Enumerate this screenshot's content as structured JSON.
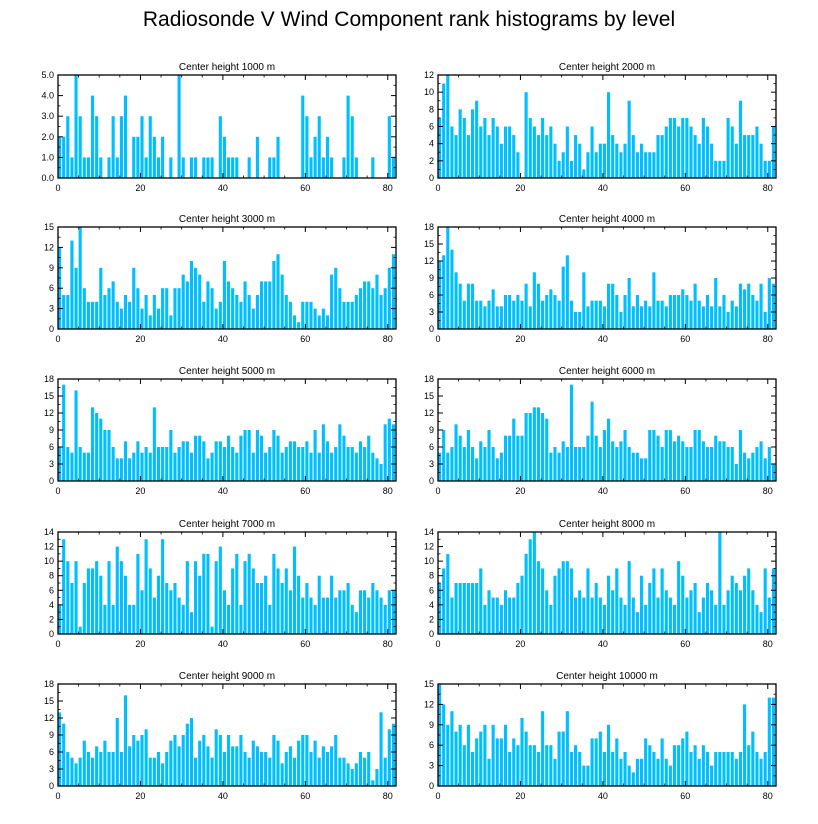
{
  "title": "Radiosonde V Wind Component rank histograms by level",
  "colors": {
    "bar": "#00bfff",
    "axis": "#000000",
    "background": "#ffffff"
  },
  "chart_data": [
    {
      "type": "bar",
      "title": "Center height 1000 m",
      "xticks": [
        0,
        20,
        40,
        60,
        80
      ],
      "yticks": [
        0,
        1,
        2,
        3,
        4,
        5
      ],
      "ytick_labels": [
        "0.0",
        "1.0",
        "2.0",
        "3.0",
        "4.0",
        "5.0"
      ],
      "ylim": [
        0,
        5
      ],
      "xlim": [
        0,
        82
      ],
      "values": [
        2,
        2,
        3,
        1,
        5,
        3,
        1,
        1,
        4,
        3,
        1,
        0,
        1,
        3,
        1,
        3,
        4,
        0,
        2,
        2,
        3,
        1,
        3,
        2,
        1,
        2,
        0,
        1,
        0,
        5,
        1,
        0,
        1,
        1,
        0,
        1,
        1,
        1,
        0,
        3,
        2,
        1,
        1,
        1,
        0,
        0,
        1,
        0,
        2,
        0,
        0,
        1,
        1,
        2,
        0,
        0,
        0,
        0,
        0,
        4,
        3,
        1,
        2,
        3,
        1,
        2,
        1,
        0,
        0,
        1,
        4,
        3,
        1,
        0,
        0,
        0,
        1,
        0,
        0,
        0,
        3,
        1
      ]
    },
    {
      "type": "bar",
      "title": "Center height 2000 m",
      "xticks": [
        0,
        20,
        40,
        60,
        80
      ],
      "yticks": [
        0,
        2,
        4,
        6,
        8,
        10,
        12
      ],
      "ytick_labels": [
        "0",
        "2",
        "4",
        "6",
        "8",
        "10",
        "12"
      ],
      "ylim": [
        0,
        12
      ],
      "xlim": [
        0,
        82
      ],
      "values": [
        7,
        11,
        12,
        6,
        5,
        8,
        7,
        5,
        8,
        9,
        6,
        7,
        5,
        7,
        6,
        4,
        6,
        6,
        5,
        3,
        0,
        10,
        7,
        6,
        5,
        7,
        5,
        6,
        4,
        2,
        3,
        6,
        2,
        5,
        4,
        1,
        3,
        6,
        3,
        4,
        4,
        10,
        5,
        4,
        3,
        4,
        9,
        5,
        3,
        4,
        3,
        3,
        3,
        5,
        5,
        6,
        7,
        7,
        6,
        7,
        7,
        6,
        5,
        4,
        7,
        6,
        4,
        2,
        2,
        2,
        7,
        6,
        4,
        9,
        5,
        5,
        5,
        6,
        4,
        2,
        2,
        6
      ]
    },
    {
      "type": "bar",
      "title": "Center height 3000 m",
      "xticks": [
        0,
        20,
        40,
        60,
        80
      ],
      "yticks": [
        0,
        3,
        6,
        9,
        12,
        15
      ],
      "ytick_labels": [
        "0",
        "3",
        "6",
        "9",
        "12",
        "15"
      ],
      "ylim": [
        0,
        15
      ],
      "xlim": [
        0,
        82
      ],
      "values": [
        12,
        5,
        5,
        13,
        9,
        15,
        6,
        4,
        4,
        4,
        9,
        5,
        6,
        7,
        4,
        3,
        5,
        4,
        9,
        6,
        3,
        5,
        2,
        5,
        3,
        6,
        6,
        2,
        6,
        6,
        8,
        7,
        10,
        9,
        8,
        4,
        7,
        6,
        3,
        4,
        10,
        7,
        6,
        5,
        4,
        7,
        5,
        3,
        5,
        7,
        7,
        7,
        10,
        11,
        8,
        5,
        4,
        2,
        1,
        4,
        4,
        4,
        3,
        2,
        3,
        2,
        8,
        9,
        6,
        4,
        4,
        4,
        5,
        6,
        7,
        7,
        6,
        8,
        5,
        6,
        9,
        11
      ]
    },
    {
      "type": "bar",
      "title": "Center height 4000 m",
      "xticks": [
        0,
        20,
        40,
        60,
        80
      ],
      "yticks": [
        0,
        3,
        6,
        9,
        12,
        15,
        18
      ],
      "ytick_labels": [
        "0",
        "3",
        "6",
        "9",
        "12",
        "15",
        "18"
      ],
      "ylim": [
        0,
        18
      ],
      "xlim": [
        0,
        82
      ],
      "values": [
        12,
        13,
        18,
        14,
        10,
        8,
        5,
        8,
        8,
        5,
        5,
        4,
        5,
        7,
        4,
        4,
        6,
        6,
        5,
        6,
        5,
        8,
        4,
        10,
        8,
        5,
        6,
        7,
        6,
        5,
        11,
        13,
        5,
        3,
        3,
        10,
        4,
        5,
        5,
        5,
        4,
        8,
        8,
        6,
        3,
        6,
        9,
        4,
        6,
        4,
        5,
        4,
        10,
        5,
        5,
        4,
        6,
        6,
        6,
        7,
        6,
        5,
        8,
        5,
        4,
        6,
        4,
        9,
        4,
        6,
        3,
        5,
        4,
        8,
        7,
        8,
        6,
        5,
        8,
        3,
        9,
        8
      ]
    },
    {
      "type": "bar",
      "title": "Center height 5000 m",
      "xticks": [
        0,
        20,
        40,
        60,
        80
      ],
      "yticks": [
        0,
        3,
        6,
        9,
        12,
        15,
        18
      ],
      "ytick_labels": [
        "0",
        "3",
        "6",
        "9",
        "12",
        "15",
        "18"
      ],
      "ylim": [
        0,
        18
      ],
      "xlim": [
        0,
        82
      ],
      "values": [
        6,
        17,
        6,
        5,
        16,
        6,
        5,
        5,
        13,
        12,
        11,
        9,
        9,
        6,
        4,
        4,
        7,
        4,
        5,
        7,
        5,
        6,
        5,
        13,
        6,
        6,
        6,
        9,
        5,
        6,
        7,
        7,
        5,
        8,
        8,
        7,
        4,
        5,
        7,
        7,
        6,
        8,
        6,
        5,
        8,
        9,
        9,
        5,
        9,
        8,
        5,
        6,
        9,
        8,
        5,
        6,
        7,
        7,
        6,
        6,
        7,
        5,
        9,
        5,
        10,
        7,
        5,
        6,
        10,
        8,
        6,
        6,
        5,
        7,
        6,
        8,
        5,
        4,
        3,
        10,
        11,
        10
      ]
    },
    {
      "type": "bar",
      "title": "Center height 6000 m",
      "xticks": [
        0,
        20,
        40,
        60,
        80
      ],
      "yticks": [
        0,
        3,
        6,
        9,
        12,
        15,
        18
      ],
      "ytick_labels": [
        "0",
        "3",
        "6",
        "9",
        "12",
        "15",
        "18"
      ],
      "ylim": [
        0,
        18
      ],
      "xlim": [
        0,
        82
      ],
      "values": [
        5,
        9,
        5,
        6,
        10,
        8,
        6,
        9,
        6,
        4,
        7,
        6,
        9,
        6,
        4,
        5,
        8,
        8,
        11,
        8,
        8,
        12,
        12,
        13,
        13,
        12,
        11,
        5,
        6,
        5,
        7,
        6,
        17,
        6,
        6,
        6,
        8,
        14,
        8,
        6,
        9,
        11,
        7,
        6,
        7,
        9,
        6,
        5,
        5,
        4,
        4,
        9,
        9,
        8,
        6,
        9,
        9,
        7,
        8,
        7,
        6,
        6,
        9,
        9,
        7,
        6,
        6,
        8,
        7,
        7,
        6,
        6,
        3,
        9,
        5,
        4,
        5,
        6,
        7,
        4,
        6,
        3
      ]
    },
    {
      "type": "bar",
      "title": "Center height 7000 m",
      "xticks": [
        0,
        20,
        40,
        60,
        80
      ],
      "yticks": [
        0,
        2,
        4,
        6,
        8,
        10,
        12,
        14
      ],
      "ytick_labels": [
        "0",
        "2",
        "4",
        "6",
        "8",
        "10",
        "12",
        "14"
      ],
      "ylim": [
        0,
        14
      ],
      "xlim": [
        0,
        82
      ],
      "values": [
        4,
        13,
        10,
        7,
        10,
        1,
        7,
        9,
        9,
        10,
        8,
        4,
        10,
        4,
        12,
        10,
        8,
        4,
        4,
        11,
        6,
        13,
        9,
        5,
        8,
        13,
        7,
        6,
        7,
        5,
        4,
        10,
        3,
        10,
        8,
        11,
        11,
        1,
        10,
        12,
        6,
        4,
        9,
        11,
        4,
        10,
        11,
        9,
        7,
        7,
        8,
        4,
        11,
        9,
        7,
        9,
        6,
        12,
        8,
        5,
        7,
        5,
        4,
        8,
        5,
        5,
        8,
        5,
        6,
        6,
        7,
        4,
        3,
        6,
        6,
        5,
        7,
        6,
        5,
        4,
        6,
        6
      ]
    },
    {
      "type": "bar",
      "title": "Center height 8000 m",
      "xticks": [
        0,
        20,
        40,
        60,
        80
      ],
      "yticks": [
        0,
        2,
        4,
        6,
        8,
        10,
        12,
        14
      ],
      "ytick_labels": [
        "0",
        "2",
        "4",
        "6",
        "8",
        "10",
        "12",
        "14"
      ],
      "ylim": [
        0,
        14
      ],
      "xlim": [
        0,
        82
      ],
      "values": [
        7,
        9,
        11,
        5,
        7,
        7,
        7,
        7,
        7,
        7,
        9,
        4,
        6,
        5,
        5,
        4,
        6,
        5,
        5,
        7,
        8,
        11,
        13,
        14,
        10,
        9,
        6,
        4,
        8,
        9,
        10,
        10,
        9,
        5,
        6,
        5,
        9,
        5,
        7,
        5,
        4,
        8,
        6,
        9,
        5,
        4,
        10,
        5,
        3,
        8,
        4,
        7,
        9,
        5,
        9,
        6,
        5,
        4,
        10,
        8,
        5,
        6,
        7,
        3,
        5,
        7,
        6,
        4,
        14,
        4,
        6,
        8,
        7,
        6,
        8,
        9,
        6,
        4,
        3,
        9,
        5,
        9
      ]
    },
    {
      "type": "bar",
      "title": "Center height 9000 m",
      "xticks": [
        0,
        20,
        40,
        60,
        80
      ],
      "yticks": [
        0,
        3,
        6,
        9,
        12,
        15,
        18
      ],
      "ytick_labels": [
        "0",
        "3",
        "6",
        "9",
        "12",
        "15",
        "18"
      ],
      "ylim": [
        0,
        18
      ],
      "xlim": [
        0,
        82
      ],
      "values": [
        13,
        11,
        6,
        5,
        4,
        5,
        8,
        6,
        5,
        7,
        6,
        8,
        6,
        6,
        12,
        6,
        16,
        7,
        9,
        8,
        9,
        10,
        5,
        5,
        6,
        4,
        6,
        8,
        9,
        7,
        9,
        11,
        12,
        5,
        8,
        9,
        7,
        5,
        10,
        9,
        6,
        9,
        7,
        7,
        9,
        6,
        5,
        8,
        7,
        6,
        6,
        5,
        9,
        8,
        4,
        6,
        7,
        5,
        8,
        9,
        9,
        6,
        8,
        5,
        7,
        6,
        7,
        9,
        5,
        5,
        4,
        3,
        4,
        6,
        5,
        6,
        1,
        3,
        13,
        5,
        10,
        11
      ]
    },
    {
      "type": "bar",
      "title": "Center height 10000 m",
      "xticks": [
        0,
        20,
        40,
        60,
        80
      ],
      "yticks": [
        0,
        3,
        6,
        9,
        12,
        15
      ],
      "ytick_labels": [
        "0",
        "3",
        "6",
        "9",
        "12",
        "15"
      ],
      "ylim": [
        0,
        15
      ],
      "xlim": [
        0,
        82
      ],
      "values": [
        15,
        12,
        9,
        11,
        8,
        9,
        6,
        9,
        5,
        7,
        8,
        9,
        4,
        9,
        7,
        7,
        9,
        5,
        7,
        6,
        10,
        8,
        6,
        6,
        5,
        11,
        6,
        6,
        4,
        8,
        8,
        11,
        5,
        6,
        5,
        3,
        3,
        7,
        7,
        8,
        5,
        9,
        5,
        7,
        4,
        5,
        3,
        2,
        4,
        4,
        7,
        6,
        5,
        4,
        7,
        4,
        3,
        6,
        6,
        7,
        8,
        5,
        6,
        4,
        6,
        5,
        3,
        5,
        5,
        5,
        5,
        5,
        4,
        5,
        12,
        6,
        8,
        5,
        4,
        5,
        13,
        13
      ]
    }
  ]
}
